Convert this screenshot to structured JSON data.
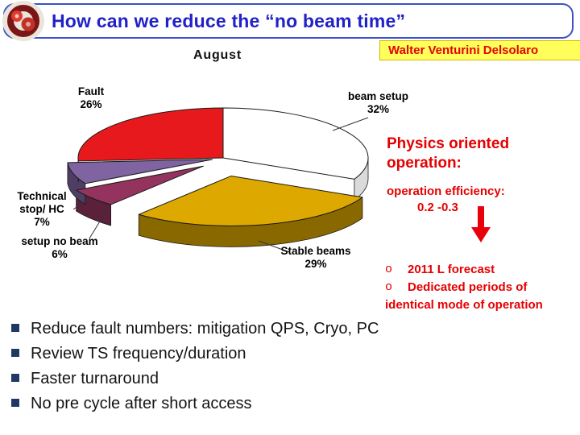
{
  "slide": {
    "title": "How can we reduce the “no beam time”",
    "author": "Walter Venturini Delsolaro",
    "physics_note": "Physics oriented operation:",
    "efficiency_label": "operation efficiency:",
    "efficiency_value": "0.2 -0.3",
    "forecast_bullet": "o",
    "forecast_line1": "2011 L forecast",
    "forecast_line2": "Dedicated periods of",
    "forecast_line3": "identical mode of operation",
    "bullets": [
      "Reduce fault numbers: mitigation QPS, Cryo, PC",
      "Review TS frequency/duration",
      "Faster turnaround",
      "No pre cycle after short access"
    ]
  },
  "chart_data": {
    "type": "pie",
    "title": "August",
    "effect": "3d-exploded-pie",
    "start_angle_deg": 0,
    "clockwise": true,
    "legend_position": "none",
    "slices": [
      {
        "label": "beam setup",
        "pct": "32%",
        "value": 32,
        "color": "#FFFFFF"
      },
      {
        "label": "Stable beams",
        "pct": "29%",
        "value": 29,
        "color": "#DDA800"
      },
      {
        "label": "setup no beam",
        "pct": "6%",
        "value": 6,
        "color": "#93335E"
      },
      {
        "label": "Technical stop/ HC",
        "pct": "7%",
        "value": 7,
        "color": "#8064A2"
      },
      {
        "label": "Fault",
        "pct": "26%",
        "value": 26,
        "color": "#E8191C"
      }
    ]
  },
  "colors": {
    "title_blue": "#2121C8",
    "frame_blue": "#3C50C8",
    "accent_red": "#E60000",
    "arrow_red": "#E8000B",
    "badge_yellow": "#FFFF5C",
    "bullet_navy": "#1F3864"
  }
}
